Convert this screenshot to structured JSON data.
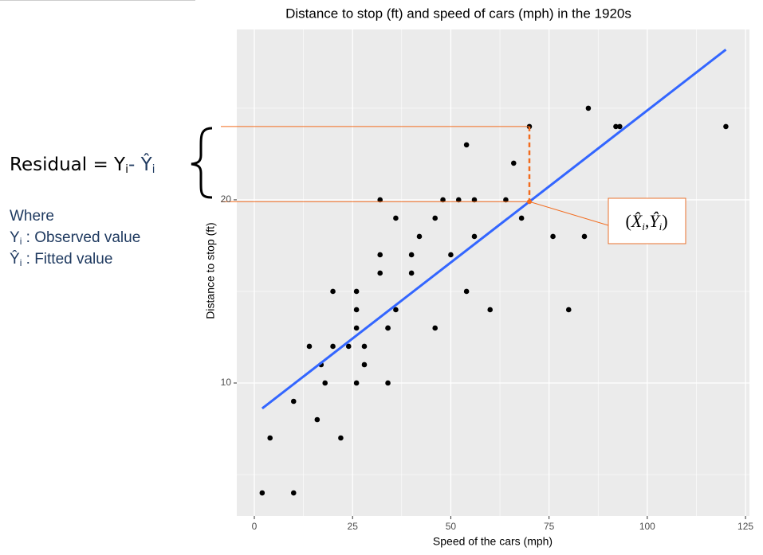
{
  "chart_data": {
    "type": "scatter",
    "title": "Distance to stop (ft) and speed of cars (mph) in the 1920s",
    "x_label": "Speed of the cars (mph)",
    "y_label": "Distance to stop (ft)",
    "x": [
      2,
      10,
      4,
      22,
      16,
      10,
      18,
      26,
      34,
      17,
      28,
      14,
      20,
      24,
      28,
      26,
      34,
      34,
      46,
      26,
      36,
      60,
      80,
      20,
      26,
      54,
      32,
      40,
      32,
      40,
      50,
      42,
      56,
      76,
      84,
      36,
      46,
      68,
      32,
      48,
      52,
      56,
      64,
      66,
      54,
      70,
      92,
      93,
      120,
      85
    ],
    "y": [
      4,
      4,
      7,
      7,
      8,
      9,
      10,
      10,
      10,
      11,
      11,
      12,
      12,
      12,
      12,
      13,
      13,
      13,
      13,
      14,
      14,
      14,
      14,
      15,
      15,
      15,
      16,
      16,
      17,
      17,
      17,
      18,
      18,
      18,
      18,
      19,
      19,
      19,
      20,
      20,
      20,
      20,
      20,
      22,
      23,
      24,
      24,
      24,
      24,
      25
    ],
    "color": "#000000",
    "fit_line": {
      "x": [
        2,
        120
      ],
      "y": [
        8.61,
        28.2
      ],
      "color": "#3366ff"
    },
    "residual": {
      "x": 70,
      "observed": 24,
      "fitted": 19.9,
      "color": "#f26b1d"
    },
    "xlim": [
      -4.46,
      126
    ],
    "ylim": [
      2.74,
      29.3
    ],
    "xticks": [
      0,
      25,
      50,
      75,
      100,
      125
    ],
    "yticks": [
      10,
      20
    ],
    "grid": true,
    "annotations": {
      "residual_label": [
        "Residual = Y",
        "i",
        "- Ŷ",
        "i"
      ],
      "where": "Where",
      "observed_label": [
        "Y",
        "i",
        " : Observed value"
      ],
      "fitted_label": [
        "Ŷ",
        "i",
        " : Fitted value"
      ],
      "point_label": [
        "(",
        "X̂",
        "i",
        ",",
        "Ŷ",
        "i",
        ")"
      ]
    }
  }
}
